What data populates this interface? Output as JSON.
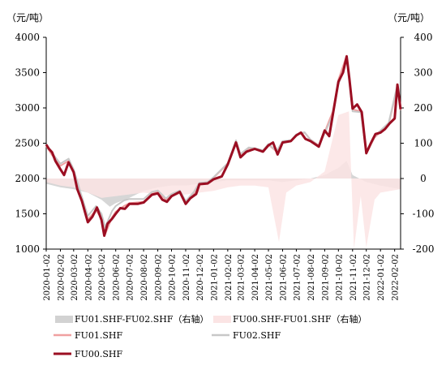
{
  "chart_data": {
    "type": "line",
    "left_unit": "（元/吨）",
    "right_unit": "（元/吨）",
    "left_axis": {
      "min": 1000,
      "max": 4000,
      "ticks": [
        1000,
        1500,
        2000,
        2500,
        3000,
        3500,
        4000
      ]
    },
    "right_axis": {
      "min": -200,
      "max": 400,
      "ticks": [
        -200,
        -100,
        0,
        100,
        200,
        300,
        400
      ]
    },
    "x_range": [
      "2020-01-02",
      "2022-02-15"
    ],
    "x_ticks": [
      "2020-01-02",
      "2020-02-02",
      "2020-03-02",
      "2020-04-02",
      "2020-05-02",
      "2020-06-02",
      "2020-07-02",
      "2020-08-02",
      "2020-09-02",
      "2020-10-02",
      "2020-11-02",
      "2020-12-02",
      "2021-01-02",
      "2021-02-02",
      "2021-03-02",
      "2021-04-02",
      "2021-05-02",
      "2021-06-02",
      "2021-07-02",
      "2021-08-02",
      "2021-09-02",
      "2021-10-02",
      "2021-11-02",
      "2021-12-02",
      "2022-01-02",
      "2022-02-02"
    ],
    "series": [
      {
        "name": "FU01.SHF-FU02.SHF（右轴）",
        "axis": "right",
        "style": "area",
        "color": "#d2d2d2",
        "points": [
          [
            "2020-01-02",
            -15
          ],
          [
            "2020-02-02",
            -25
          ],
          [
            "2020-03-02",
            -30
          ],
          [
            "2020-04-02",
            -40
          ],
          [
            "2020-05-02",
            -60
          ],
          [
            "2020-05-20",
            -80
          ],
          [
            "2020-06-02",
            -70
          ],
          [
            "2020-07-02",
            -55
          ],
          [
            "2020-08-02",
            -35
          ],
          [
            "2020-09-02",
            -25
          ],
          [
            "2020-10-02",
            -20
          ],
          [
            "2020-11-02",
            -20
          ],
          [
            "2020-12-02",
            -15
          ],
          [
            "2021-01-02",
            -10
          ],
          [
            "2021-02-02",
            -5
          ],
          [
            "2021-03-02",
            -5
          ],
          [
            "2021-04-02",
            -5
          ],
          [
            "2021-05-02",
            -5
          ],
          [
            "2021-06-02",
            -10
          ],
          [
            "2021-07-02",
            -5
          ],
          [
            "2021-08-02",
            0
          ],
          [
            "2021-09-02",
            10
          ],
          [
            "2021-10-02",
            30
          ],
          [
            "2021-10-20",
            50
          ],
          [
            "2021-11-02",
            10
          ],
          [
            "2021-12-02",
            -10
          ],
          [
            "2022-01-02",
            -20
          ],
          [
            "2022-02-15",
            -30
          ]
        ]
      },
      {
        "name": "FU00.SHF-FU01.SHF（右轴）",
        "axis": "right",
        "style": "area",
        "color": "#fbe4e4",
        "points": [
          [
            "2020-01-02",
            -10
          ],
          [
            "2020-02-02",
            -20
          ],
          [
            "2020-03-02",
            -25
          ],
          [
            "2020-04-02",
            -40
          ],
          [
            "2020-05-02",
            -55
          ],
          [
            "2020-06-02",
            -50
          ],
          [
            "2020-07-02",
            -45
          ],
          [
            "2020-08-02",
            -40
          ],
          [
            "2020-09-02",
            -45
          ],
          [
            "2020-10-02",
            -50
          ],
          [
            "2020-11-02",
            -45
          ],
          [
            "2020-12-02",
            -40
          ],
          [
            "2021-01-02",
            -35
          ],
          [
            "2021-02-02",
            -25
          ],
          [
            "2021-03-02",
            -20
          ],
          [
            "2021-04-02",
            -20
          ],
          [
            "2021-05-02",
            -25
          ],
          [
            "2021-05-25",
            -180
          ],
          [
            "2021-06-10",
            -40
          ],
          [
            "2021-07-02",
            -20
          ],
          [
            "2021-08-02",
            -10
          ],
          [
            "2021-09-02",
            20
          ],
          [
            "2021-10-02",
            180
          ],
          [
            "2021-10-25",
            190
          ],
          [
            "2021-11-05",
            -200
          ],
          [
            "2021-11-20",
            -50
          ],
          [
            "2021-12-02",
            -195
          ],
          [
            "2021-12-20",
            -60
          ],
          [
            "2022-01-02",
            -40
          ],
          [
            "2022-02-15",
            -30
          ]
        ]
      },
      {
        "name": "FU01.SHF",
        "axis": "left",
        "style": "line",
        "color": "#f0a0a0",
        "points": [
          [
            "2020-01-02",
            2460
          ],
          [
            "2020-01-15",
            2330
          ],
          [
            "2020-02-02",
            2180
          ],
          [
            "2020-02-20",
            2250
          ],
          [
            "2020-03-02",
            2100
          ],
          [
            "2020-03-20",
            1700
          ],
          [
            "2020-04-02",
            1420
          ],
          [
            "2020-04-20",
            1550
          ],
          [
            "2020-05-02",
            1430
          ],
          [
            "2020-05-10",
            1210
          ],
          [
            "2020-05-25",
            1450
          ],
          [
            "2020-06-02",
            1530
          ],
          [
            "2020-06-20",
            1610
          ],
          [
            "2020-07-02",
            1650
          ],
          [
            "2020-08-02",
            1670
          ],
          [
            "2020-08-20",
            1780
          ],
          [
            "2020-09-02",
            1810
          ],
          [
            "2020-09-20",
            1700
          ],
          [
            "2020-10-02",
            1760
          ],
          [
            "2020-10-20",
            1810
          ],
          [
            "2020-11-02",
            1660
          ],
          [
            "2020-11-20",
            1790
          ],
          [
            "2020-12-02",
            1930
          ],
          [
            "2020-12-20",
            1940
          ],
          [
            "2021-01-02",
            2010
          ],
          [
            "2021-02-02",
            2210
          ],
          [
            "2021-02-20",
            2530
          ],
          [
            "2021-03-02",
            2340
          ],
          [
            "2021-03-20",
            2430
          ],
          [
            "2021-04-02",
            2420
          ],
          [
            "2021-04-20",
            2390
          ],
          [
            "2021-05-02",
            2480
          ],
          [
            "2021-05-20",
            2380
          ],
          [
            "2021-06-02",
            2520
          ],
          [
            "2021-06-20",
            2530
          ],
          [
            "2021-07-02",
            2620
          ],
          [
            "2021-07-20",
            2650
          ],
          [
            "2021-08-02",
            2550
          ],
          [
            "2021-08-20",
            2470
          ],
          [
            "2021-09-02",
            2660
          ],
          [
            "2021-09-20",
            2950
          ],
          [
            "2021-10-02",
            3400
          ],
          [
            "2021-10-20",
            3740
          ],
          [
            "2021-11-02",
            2980
          ],
          [
            "2021-11-20",
            2950
          ],
          [
            "2021-12-02",
            2350
          ],
          [
            "2021-12-20",
            2580
          ],
          [
            "2022-01-02",
            2660
          ],
          [
            "2022-01-20",
            2770
          ],
          [
            "2022-02-08",
            3300
          ],
          [
            "2022-02-15",
            2970
          ]
        ]
      },
      {
        "name": "FU02.SHF",
        "axis": "left",
        "style": "line",
        "color": "#c8c8c8",
        "points": [
          [
            "2020-01-02",
            2480
          ],
          [
            "2020-01-15",
            2360
          ],
          [
            "2020-02-02",
            2210
          ],
          [
            "2020-02-20",
            2280
          ],
          [
            "2020-03-02",
            2130
          ],
          [
            "2020-03-20",
            1740
          ],
          [
            "2020-04-02",
            1470
          ],
          [
            "2020-04-20",
            1610
          ],
          [
            "2020-05-02",
            1500
          ],
          [
            "2020-05-10",
            1310
          ],
          [
            "2020-05-25",
            1540
          ],
          [
            "2020-06-02",
            1610
          ],
          [
            "2020-06-20",
            1690
          ],
          [
            "2020-07-02",
            1710
          ],
          [
            "2020-08-02",
            1710
          ],
          [
            "2020-08-20",
            1810
          ],
          [
            "2020-09-02",
            1830
          ],
          [
            "2020-09-20",
            1720
          ],
          [
            "2020-10-02",
            1780
          ],
          [
            "2020-10-20",
            1830
          ],
          [
            "2020-11-02",
            1680
          ],
          [
            "2020-11-20",
            1810
          ],
          [
            "2020-12-02",
            1940
          ],
          [
            "2020-12-20",
            1950
          ],
          [
            "2021-01-02",
            2020
          ],
          [
            "2021-02-02",
            2220
          ],
          [
            "2021-02-20",
            2540
          ],
          [
            "2021-03-02",
            2350
          ],
          [
            "2021-03-20",
            2440
          ],
          [
            "2021-04-02",
            2430
          ],
          [
            "2021-04-20",
            2400
          ],
          [
            "2021-05-02",
            2490
          ],
          [
            "2021-05-20",
            2390
          ],
          [
            "2021-06-02",
            2530
          ],
          [
            "2021-06-20",
            2540
          ],
          [
            "2021-07-02",
            2625
          ],
          [
            "2021-07-20",
            2655
          ],
          [
            "2021-08-02",
            2550
          ],
          [
            "2021-08-20",
            2460
          ],
          [
            "2021-09-02",
            2640
          ],
          [
            "2021-09-20",
            2900
          ],
          [
            "2021-10-02",
            3330
          ],
          [
            "2021-10-20",
            3680
          ],
          [
            "2021-11-02",
            2950
          ],
          [
            "2021-11-20",
            2940
          ],
          [
            "2021-12-02",
            2360
          ],
          [
            "2021-12-20",
            2590
          ],
          [
            "2022-01-02",
            2680
          ],
          [
            "2022-01-20",
            2790
          ],
          [
            "2022-02-08",
            3330
          ],
          [
            "2022-02-15",
            3000
          ]
        ]
      },
      {
        "name": "FU00.SHF",
        "axis": "left",
        "style": "line",
        "color": "#9b0e22",
        "points": [
          [
            "2020-01-02",
            2480
          ],
          [
            "2020-01-08",
            2420
          ],
          [
            "2020-01-15",
            2370
          ],
          [
            "2020-01-22",
            2250
          ],
          [
            "2020-02-02",
            2130
          ],
          [
            "2020-02-10",
            2050
          ],
          [
            "2020-02-20",
            2230
          ],
          [
            "2020-03-02",
            2090
          ],
          [
            "2020-03-10",
            1850
          ],
          [
            "2020-03-20",
            1680
          ],
          [
            "2020-04-02",
            1380
          ],
          [
            "2020-04-12",
            1460
          ],
          [
            "2020-04-22",
            1590
          ],
          [
            "2020-05-02",
            1410
          ],
          [
            "2020-05-08",
            1190
          ],
          [
            "2020-05-15",
            1360
          ],
          [
            "2020-05-25",
            1430
          ],
          [
            "2020-06-02",
            1500
          ],
          [
            "2020-06-12",
            1580
          ],
          [
            "2020-06-22",
            1570
          ],
          [
            "2020-07-02",
            1640
          ],
          [
            "2020-07-20",
            1640
          ],
          [
            "2020-08-02",
            1660
          ],
          [
            "2020-08-20",
            1770
          ],
          [
            "2020-09-02",
            1790
          ],
          [
            "2020-09-12",
            1700
          ],
          [
            "2020-09-22",
            1670
          ],
          [
            "2020-10-02",
            1750
          ],
          [
            "2020-10-20",
            1810
          ],
          [
            "2020-11-02",
            1640
          ],
          [
            "2020-11-12",
            1720
          ],
          [
            "2020-11-25",
            1780
          ],
          [
            "2020-12-02",
            1920
          ],
          [
            "2020-12-20",
            1930
          ],
          [
            "2021-01-02",
            1990
          ],
          [
            "2021-01-20",
            2030
          ],
          [
            "2021-02-02",
            2200
          ],
          [
            "2021-02-20",
            2510
          ],
          [
            "2021-03-02",
            2300
          ],
          [
            "2021-03-15",
            2380
          ],
          [
            "2021-04-02",
            2420
          ],
          [
            "2021-04-20",
            2380
          ],
          [
            "2021-05-02",
            2470
          ],
          [
            "2021-05-12",
            2510
          ],
          [
            "2021-05-22",
            2340
          ],
          [
            "2021-06-02",
            2510
          ],
          [
            "2021-06-20",
            2530
          ],
          [
            "2021-07-02",
            2610
          ],
          [
            "2021-07-12",
            2650
          ],
          [
            "2021-07-22",
            2560
          ],
          [
            "2021-08-02",
            2530
          ],
          [
            "2021-08-20",
            2450
          ],
          [
            "2021-09-02",
            2680
          ],
          [
            "2021-09-12",
            2600
          ],
          [
            "2021-09-22",
            2990
          ],
          [
            "2021-10-02",
            3370
          ],
          [
            "2021-10-12",
            3500
          ],
          [
            "2021-10-20",
            3730
          ],
          [
            "2021-10-26",
            3420
          ],
          [
            "2021-11-02",
            2990
          ],
          [
            "2021-11-12",
            3050
          ],
          [
            "2021-11-22",
            2940
          ],
          [
            "2021-12-02",
            2360
          ],
          [
            "2021-12-12",
            2500
          ],
          [
            "2021-12-22",
            2630
          ],
          [
            "2022-01-02",
            2650
          ],
          [
            "2022-01-12",
            2700
          ],
          [
            "2022-01-22",
            2780
          ],
          [
            "2022-02-02",
            2850
          ],
          [
            "2022-02-08",
            3330
          ],
          [
            "2022-02-15",
            2980
          ]
        ]
      }
    ]
  }
}
